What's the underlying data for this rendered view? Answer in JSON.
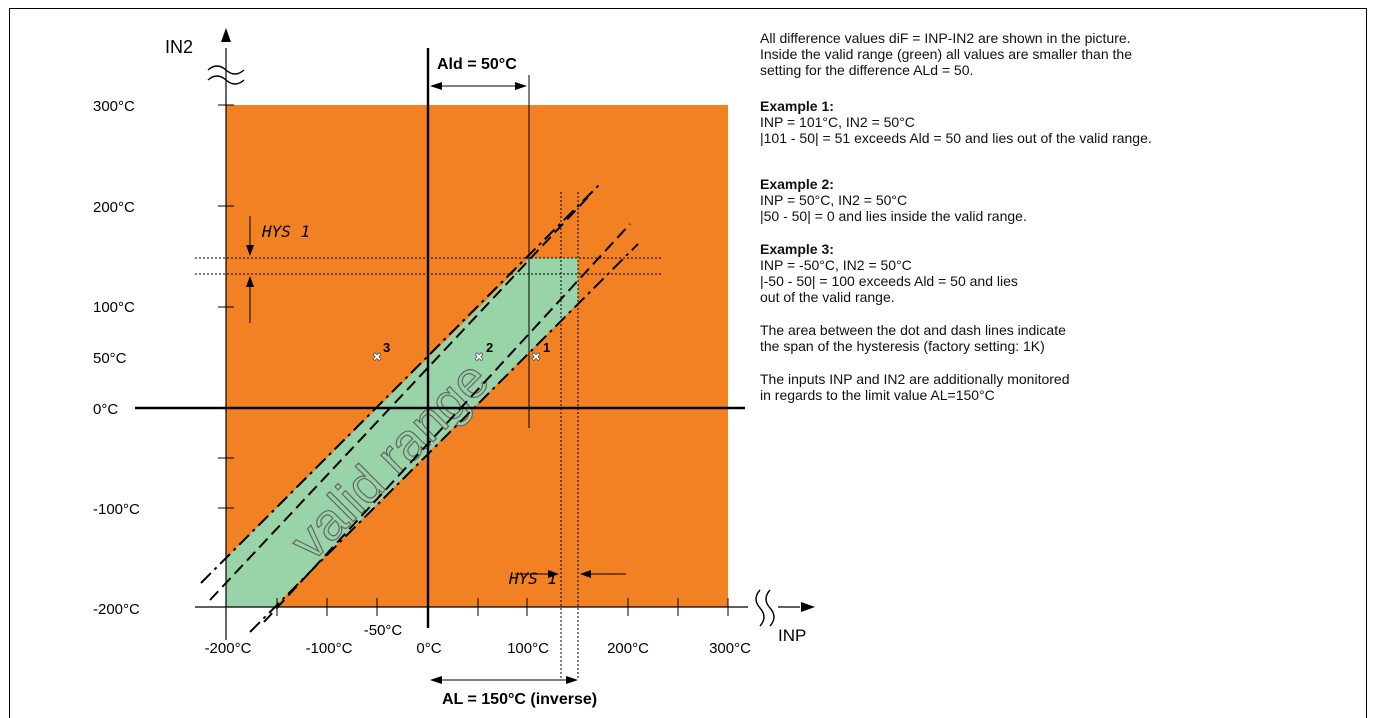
{
  "diagram": {
    "axis_labels": {
      "y": "IN2",
      "x": "INP"
    },
    "y_ticks": [
      "300°C",
      "200°C",
      "100°C",
      "50°C",
      "0°C",
      "-100°C",
      "-200°C"
    ],
    "x_ticks": [
      "-200°C",
      "-100°C",
      "-50°C",
      "0°C",
      "100°C",
      "200°C",
      "300°C"
    ],
    "ald_label": "Ald = 50°C",
    "al_label": "AL = 150°C (inverse)",
    "hys_label": "HYS 1",
    "valid_label": "valid range",
    "points": [
      {
        "label": "1",
        "inp": 101,
        "in2": 50
      },
      {
        "label": "2",
        "inp": 50,
        "in2": 50
      },
      {
        "label": "3",
        "inp": -50,
        "in2": 50
      }
    ],
    "colors": {
      "invalid": "#f28123",
      "valid": "#99d3a8",
      "line": "#000000"
    }
  },
  "notes": {
    "intro": [
      "All difference values diF = INP-IN2 are shown in the picture.",
      "Inside the valid range (green) all values are smaller than the",
      "setting for the difference ALd = 50."
    ],
    "examples": [
      {
        "title": "Example 1:",
        "lines": [
          "INP = 101°C, IN2 = 50°C",
          "|101 - 50| = 51 exceeds Ald = 50 and lies out of the valid range."
        ]
      },
      {
        "title": "Example 2:",
        "lines": [
          "INP = 50°C, IN2 = 50°C",
          "|50 - 50| = 0  and lies inside the valid range."
        ]
      },
      {
        "title": "Example 3:",
        "lines": [
          "INP = -50°C, IN2 = 50°C",
          "|-50 - 50| = 100  exceeds Ald = 50 and lies",
          "out of the valid range."
        ]
      }
    ],
    "hysteresis": [
      "The area between the dot and dash lines indicate",
      "the span of the hysteresis (factory setting: 1K)"
    ],
    "limit": [
      "The inputs INP and IN2 are additionally monitored",
      "in regards to the limit value AL=150°C"
    ]
  }
}
